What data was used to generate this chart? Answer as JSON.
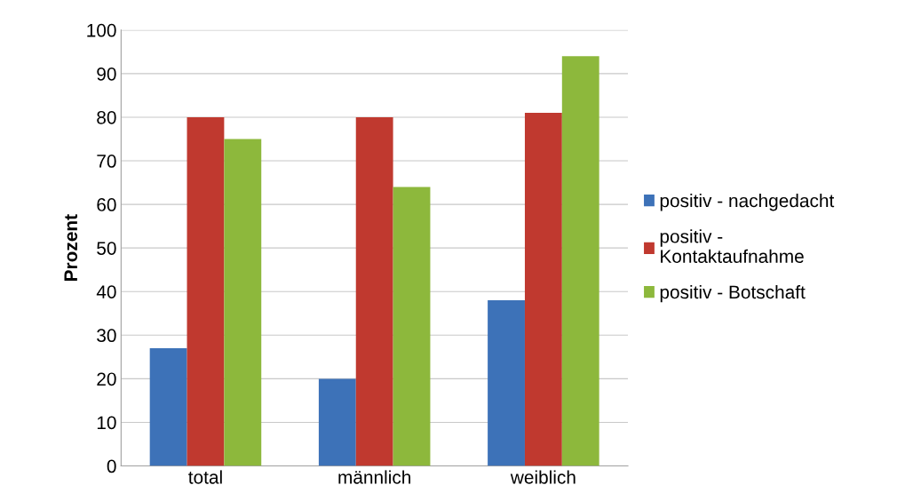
{
  "chart_data": {
    "type": "bar",
    "ylabel": "Prozent",
    "categories": [
      "total",
      "männlich",
      "weiblich"
    ],
    "series": [
      {
        "name": "positiv - nachgedacht",
        "color": "#3d72b8",
        "values": [
          27,
          20,
          38
        ]
      },
      {
        "name": "positiv -\nKontaktaufnahme",
        "color": "#c0392f",
        "values": [
          80,
          80,
          81
        ]
      },
      {
        "name": "positiv - Botschaft",
        "color": "#8db83c",
        "values": [
          75,
          64,
          94
        ]
      }
    ],
    "ylim": [
      0,
      100
    ],
    "yticks": [
      0,
      10,
      20,
      30,
      40,
      50,
      60,
      70,
      80,
      90,
      100
    ],
    "grid": "y",
    "legend": "right"
  }
}
